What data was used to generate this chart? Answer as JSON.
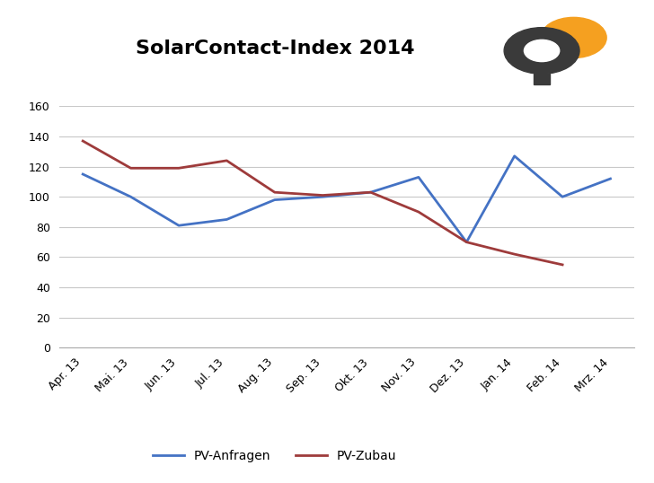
{
  "title": "SolarContact-Index 2014",
  "categories": [
    "Apr. 13",
    "Mai. 13",
    "Jun. 13",
    "Jul. 13",
    "Aug. 13",
    "Sep. 13",
    "Okt. 13",
    "Nov. 13",
    "Dez. 13",
    "Jan. 14",
    "Feb. 14",
    "Mrz. 14"
  ],
  "pv_anfragen": [
    115,
    100,
    81,
    85,
    98,
    100,
    103,
    113,
    70,
    127,
    100,
    112
  ],
  "pv_zubau": [
    137,
    119,
    119,
    124,
    103,
    101,
    103,
    90,
    70,
    62,
    55,
    null
  ],
  "anfragen_color": "#4472C4",
  "zubau_color": "#9E3B3B",
  "background_color": "#FFFFFF",
  "plot_bg_color": "#FFFFFF",
  "grid_color": "#C8C8C8",
  "ylim": [
    0,
    160
  ],
  "yticks": [
    0,
    20,
    40,
    60,
    80,
    100,
    120,
    140,
    160
  ],
  "legend_anfragen": "PV-Anfragen",
  "legend_zubau": "PV-Zubau",
  "title_fontsize": 16,
  "tick_fontsize": 9,
  "legend_fontsize": 10,
  "logo_orange_color": "#F5A020",
  "logo_gray_color": "#5A5A5A",
  "logo_dark_color": "#3A3A3A"
}
